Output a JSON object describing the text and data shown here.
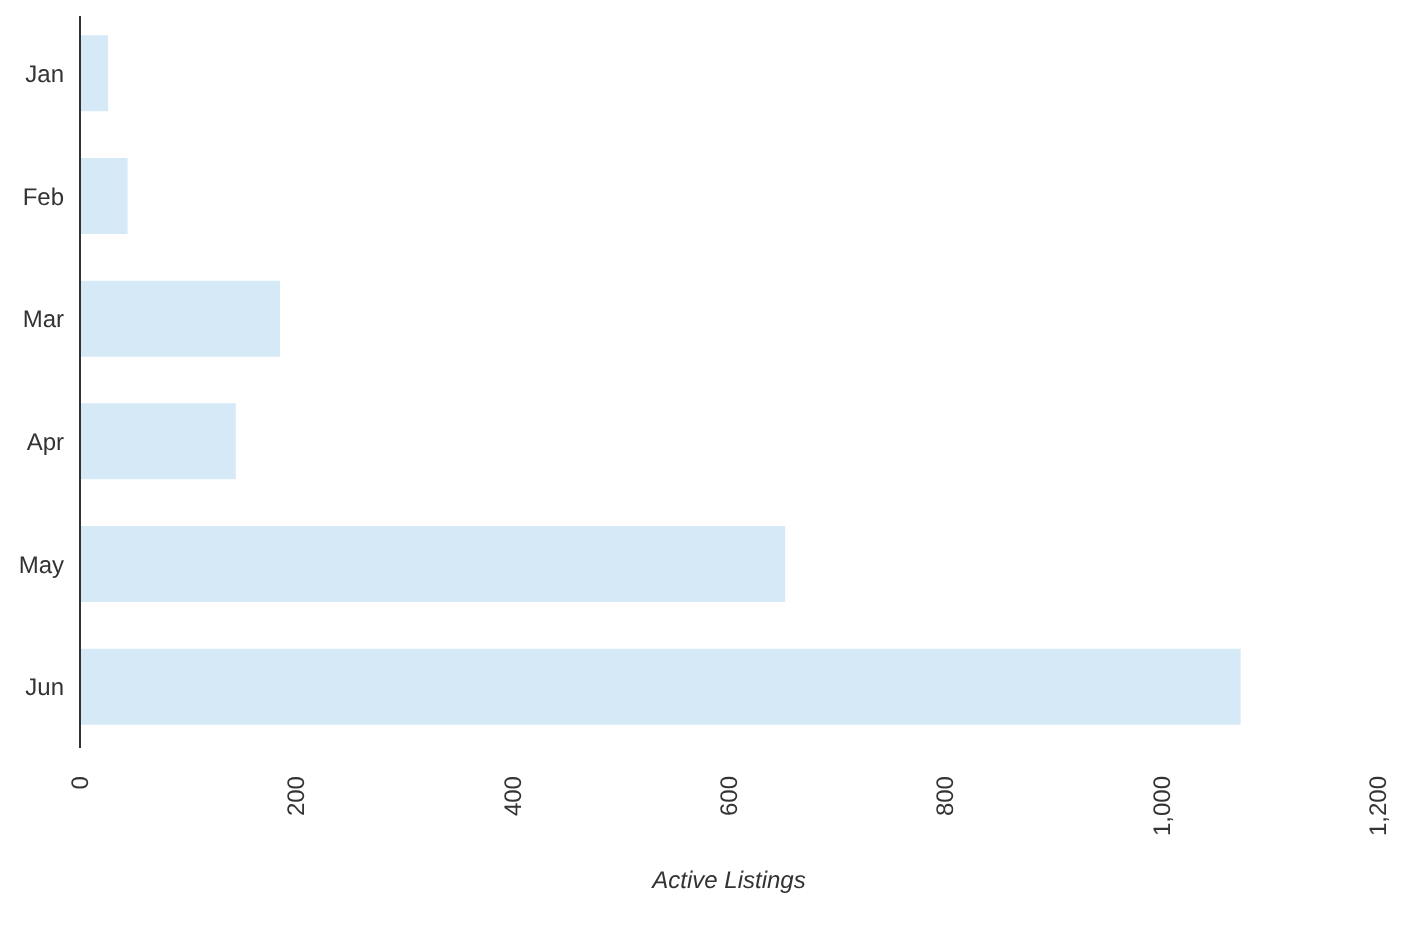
{
  "chart_data": {
    "type": "bar",
    "orientation": "horizontal",
    "xlabel": "Active Listings",
    "categories": [
      "Jan",
      "Feb",
      "Mar",
      "Apr",
      "May",
      "Jun"
    ],
    "values": [
      26,
      44,
      185,
      144,
      652,
      1073
    ],
    "color": "#d6e9f7",
    "xlim": [
      0,
      1200
    ],
    "xticks": [
      0,
      {
        "value": 200,
        "label": "200"
      },
      {
        "value": 400,
        "label": "400"
      },
      {
        "value": 600,
        "label": "600"
      },
      {
        "value": 800,
        "label": "800"
      },
      {
        "value": 1000,
        "label": "1,000"
      },
      {
        "value": 1200,
        "label": "1,200"
      }
    ],
    "grid": false,
    "legend": false
  }
}
